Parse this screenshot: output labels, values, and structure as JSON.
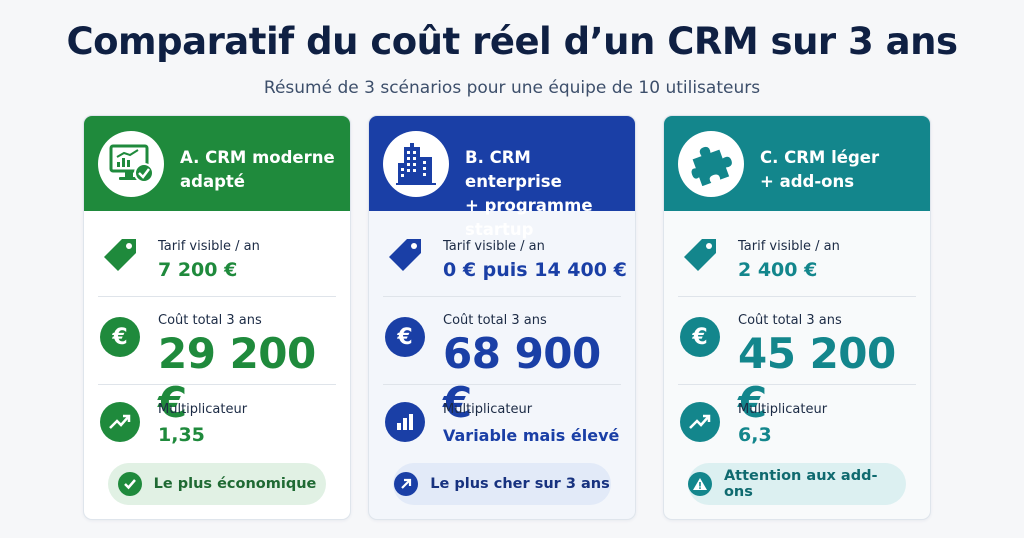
{
  "title": "Comparatif du coût réel d’un CRM sur 3 ans",
  "subtitle": "Résumé de 3 scénarios pour une équipe de 10 utilisateurs",
  "colors": {
    "green": "#1f8a3c",
    "blue": "#1a3fa6",
    "teal": "#13868c",
    "green_pill_bg": "#e1f1e4",
    "blue_pill_bg": "#e2eaf8",
    "teal_pill_bg": "#dcf0f1"
  },
  "cards": [
    {
      "icon": "monitor-chart-icon",
      "title_line1": "A. CRM moderne",
      "title_line2": "adapté",
      "price_label": "Tarif visible / an",
      "price_value": "7 200 €",
      "total_label": "Coût total 3 ans",
      "total_value": "29 200 €",
      "mult_label": "Multiplicateur",
      "mult_value": "1,35",
      "badge": "Le plus économique",
      "badge_icon": "check-icon"
    },
    {
      "icon": "building-icon",
      "title_line1": "B. CRM enterprise",
      "title_line2": "+ programme startup",
      "price_label": "Tarif visible / an",
      "price_value": "0 € puis 14 400 €",
      "total_label": "Coût total 3 ans",
      "total_value": "68 900 €",
      "mult_label": "Multiplicateur",
      "mult_value": "Variable mais élevé",
      "badge": "Le plus cher sur 3 ans",
      "badge_icon": "arrow-up-right-icon"
    },
    {
      "icon": "puzzle-icon",
      "title_line1": "C. CRM léger",
      "title_line2": "+ add-ons",
      "price_label": "Tarif visible / an",
      "price_value": "2 400 €",
      "total_label": "Coût total 3 ans",
      "total_value": "45 200 €",
      "mult_label": "Multiplicateur",
      "mult_value": "6,3",
      "badge": "Attention aux add-ons",
      "badge_icon": "warning-icon"
    }
  ]
}
